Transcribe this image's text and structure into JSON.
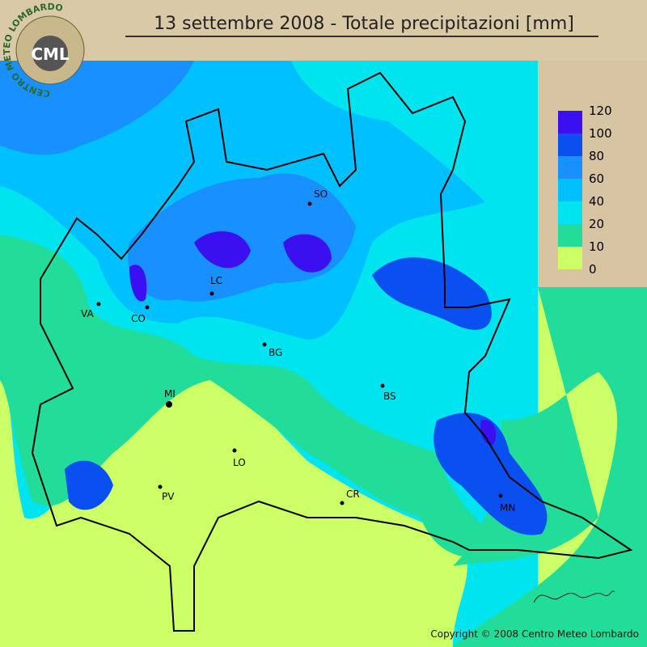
{
  "header": {
    "title": "13 settembre 2008 - Totale precipitazioni [mm]",
    "logo": "CML",
    "logo_ring": "CENTRO METEO LOMBARDO"
  },
  "legend": {
    "levels": [
      {
        "label": 120,
        "color": "#3a10f0"
      },
      {
        "label": 100,
        "color": "#0a50f0"
      },
      {
        "label": 80,
        "color": "#1890ff"
      },
      {
        "label": 60,
        "color": "#00c0ff"
      },
      {
        "label": 40,
        "color": "#00e4f0"
      },
      {
        "label": 20,
        "color": "#22dd99"
      },
      {
        "label": 10,
        "color": "#ccff66"
      },
      {
        "label": 0
      }
    ]
  },
  "cities": [
    {
      "label": "SO"
    },
    {
      "label": "VA"
    },
    {
      "label": "CO"
    },
    {
      "label": "LC"
    },
    {
      "label": "BG"
    },
    {
      "label": "MI"
    },
    {
      "label": "BS"
    },
    {
      "label": "LO"
    },
    {
      "label": "PV"
    },
    {
      "label": "CR"
    },
    {
      "label": "MN"
    }
  ],
  "footer": {
    "copyright": "Copyright © 2008 Centro Meteo Lombardo"
  }
}
